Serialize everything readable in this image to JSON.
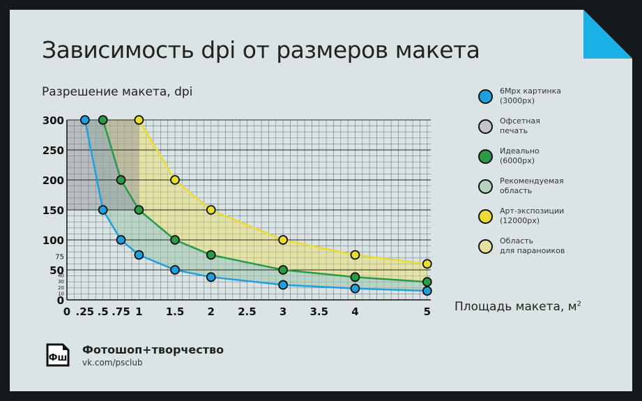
{
  "colors": {
    "background": "#dbe4e5",
    "accent_corner": "#1ab2e6",
    "line_6mpx": "#1ea0df",
    "line_ideal": "#2a9a48",
    "line_art": "#e9dc33",
    "fill_offset": "#c5c5c9",
    "fill_recommended": "#b6d3c2",
    "fill_paranoid": "#e5e2a0"
  },
  "chart_data": {
    "type": "line",
    "title": "Зависимость dpi от размеров макета",
    "ylabel": "Разрешение макета, dpi",
    "xlabel": "Площадь макета, м",
    "xlabel_sup": "2",
    "xlim": [
      0,
      5.05
    ],
    "ylim": [
      0,
      300
    ],
    "y_ticks_major": [
      "300",
      "250",
      "200",
      "150",
      "100",
      "75",
      "50",
      "40",
      "30",
      "20",
      "10",
      "0"
    ],
    "x_ticks": [
      "0",
      ".25",
      ".5",
      ".75",
      "1",
      "1.5",
      "2",
      "2.5",
      "3",
      "3.5",
      "4",
      "5"
    ],
    "grid": true,
    "offset_region": {
      "x": [
        0,
        1
      ],
      "y": [
        150,
        300
      ]
    },
    "series": [
      {
        "name": "6Mpx картинка (3000px)",
        "color": "#1ea0df",
        "x": [
          0.25,
          0.5,
          0.75,
          1,
          1.5,
          2,
          3,
          4,
          5
        ],
        "y": [
          300,
          150,
          100,
          75,
          50,
          38,
          25,
          19,
          15
        ]
      },
      {
        "name": "Идеально (6000px)",
        "color": "#2a9a48",
        "x": [
          0.5,
          0.75,
          1,
          1.5,
          2,
          3,
          4,
          5
        ],
        "y": [
          300,
          200,
          150,
          100,
          75,
          50,
          38,
          30
        ]
      },
      {
        "name": "Арт-экспозиции (12000px)",
        "color": "#e9dc33",
        "x": [
          1,
          1.5,
          2,
          3,
          4,
          5
        ],
        "y": [
          300,
          200,
          150,
          100,
          75,
          60
        ]
      }
    ]
  },
  "legend": [
    {
      "label": "6Mpx картинка\n(3000px)",
      "color": "#1ea0df"
    },
    {
      "label": "Офсетная\nпечать",
      "color": "#c5c5c9"
    },
    {
      "label": "Идеально\n(6000px)",
      "color": "#2a9a48"
    },
    {
      "label": "Рекомендуемая\nобласть",
      "color": "#b6d3c2"
    },
    {
      "label": "Арт-экспозиции\n(12000px)",
      "color": "#e9dc33"
    },
    {
      "label": "Область\nдля параноиков",
      "color": "#e5e2a0"
    }
  ],
  "brand": {
    "logo_text": "Фш",
    "name": "Фотошоп+творчество",
    "url": "vk.com/psclub"
  }
}
